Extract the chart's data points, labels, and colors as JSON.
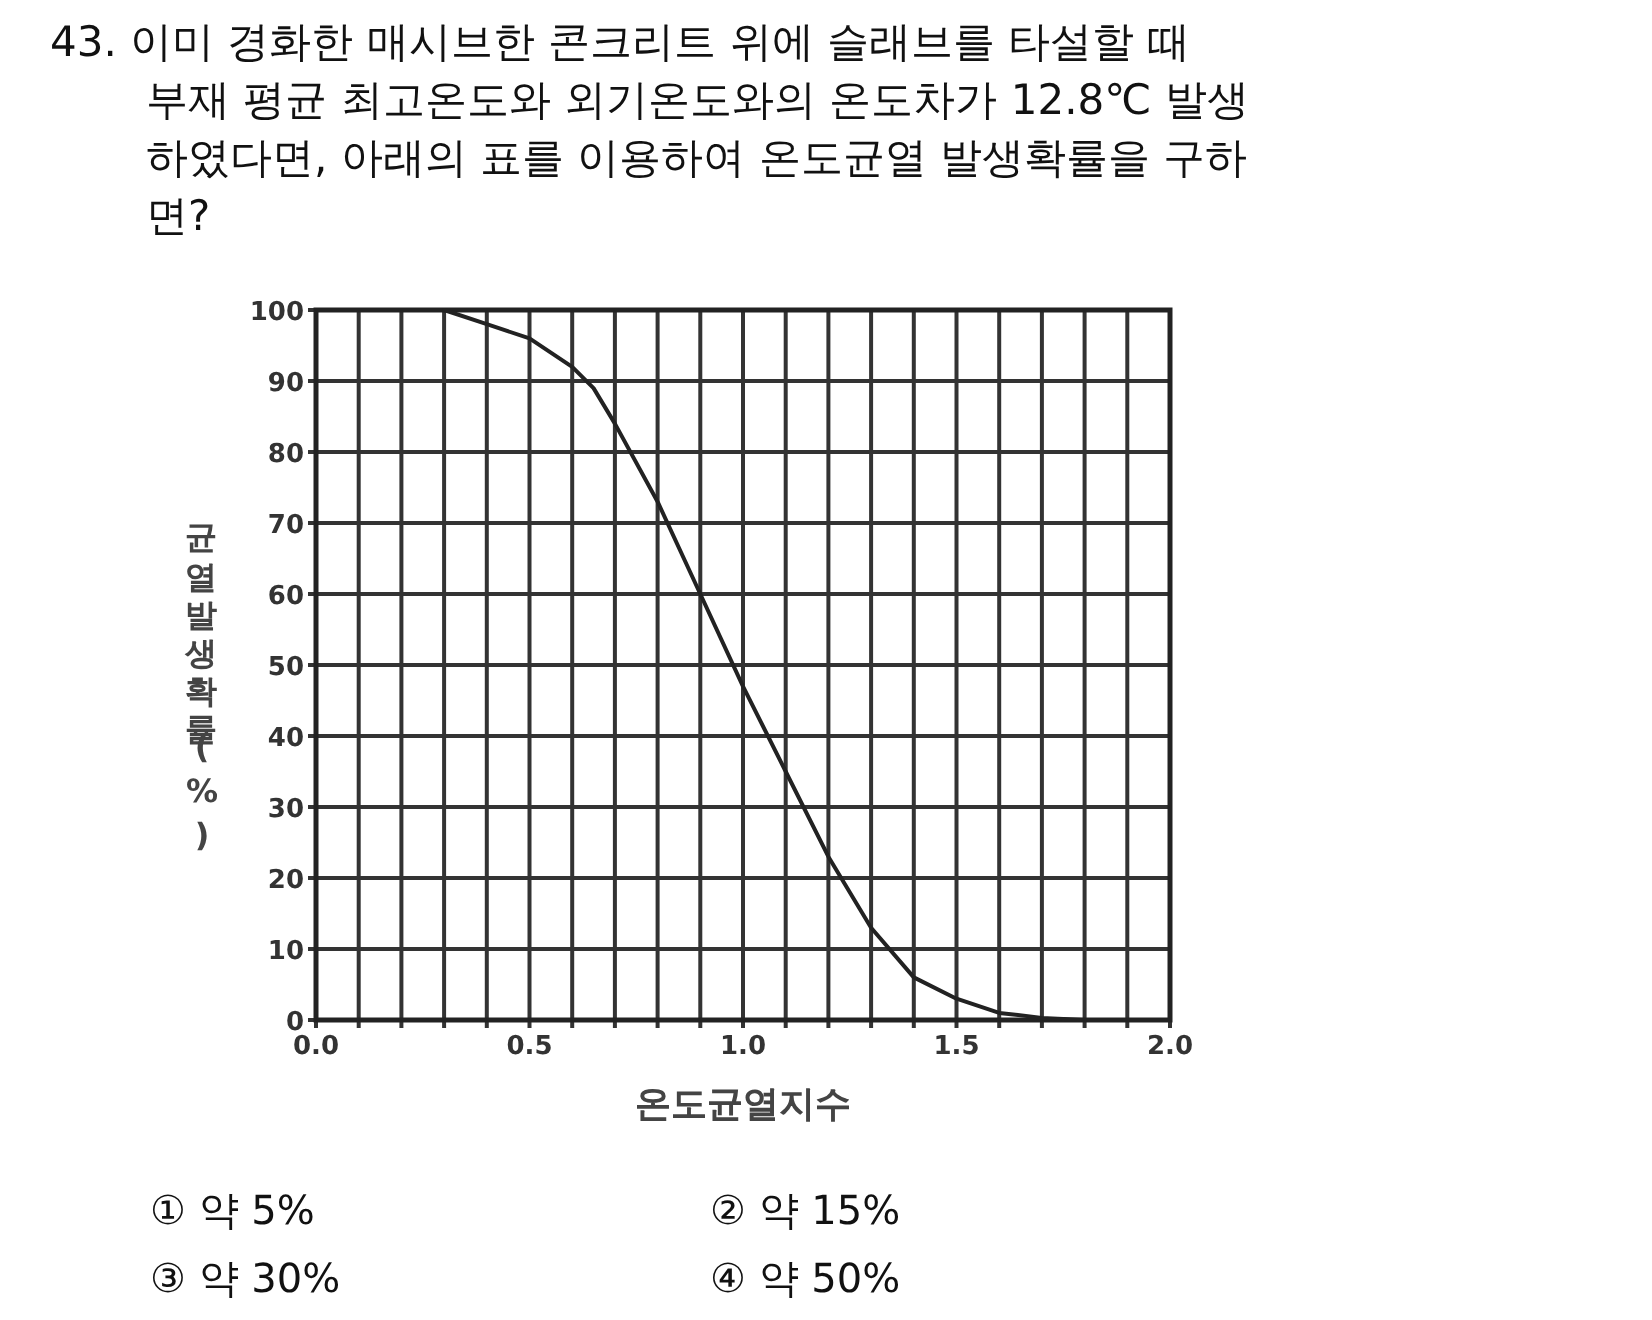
{
  "chart_data": {
    "type": "line",
    "title": "43. 이미 경화한 매시브한 콘크리트 위에 슬래브를 타설할 때\n부재 평균 최고온도와 외기온도와의 온도차가 12.8℃ 발생\n하였다면, 아래의 표를 이용하여 온도균열 발생확률을 구하\n면?",
    "xlabel": "온도균열지수",
    "ylabel": "균열발생확률(%)",
    "x": [
      0.3,
      0.4,
      0.5,
      0.6,
      0.65,
      0.7,
      0.8,
      0.9,
      1.0,
      1.1,
      1.2,
      1.3,
      1.4,
      1.5,
      1.6,
      1.7,
      1.8
    ],
    "series": [
      {
        "color": "#222222",
        "values": [
          100,
          98,
          96,
          92,
          89,
          84,
          73,
          60,
          47,
          35,
          23,
          13,
          6,
          3,
          1,
          0.3,
          0
        ]
      }
    ],
    "xlim": [
      0,
      2
    ],
    "xticks": [
      {
        "value": 0,
        "label": "0.0"
      },
      {
        "value": 0.1,
        "label": null
      },
      {
        "value": 0.2,
        "label": null
      },
      {
        "value": 0.3,
        "label": null
      },
      {
        "value": 0.4,
        "label": null
      },
      {
        "value": 0.5,
        "label": "0.5"
      },
      {
        "value": 0.6,
        "label": null
      },
      {
        "value": 0.7,
        "label": null
      },
      {
        "value": 0.8,
        "label": null
      },
      {
        "value": 0.9,
        "label": null
      },
      {
        "value": 1,
        "label": "1.0"
      },
      {
        "value": 1.1,
        "label": null
      },
      {
        "value": 1.2,
        "label": null
      },
      {
        "value": 1.3,
        "label": null
      },
      {
        "value": 1.4,
        "label": null
      },
      {
        "value": 1.5,
        "label": "1.5"
      },
      {
        "value": 1.6,
        "label": null
      },
      {
        "value": 1.7,
        "label": null
      },
      {
        "value": 1.8,
        "label": null
      },
      {
        "value": 1.9,
        "label": null
      },
      {
        "value": 2,
        "label": "2.0"
      }
    ],
    "ylim": [
      0,
      100
    ],
    "yticks": [
      0,
      10,
      20,
      30,
      40,
      50,
      60,
      70,
      80,
      90,
      100
    ],
    "grid": true,
    "line_style": "solid",
    "annotations": [
      "① 약 5%",
      "② 약 15%",
      "③ 약 30%",
      "④ 약 50%"
    ]
  }
}
